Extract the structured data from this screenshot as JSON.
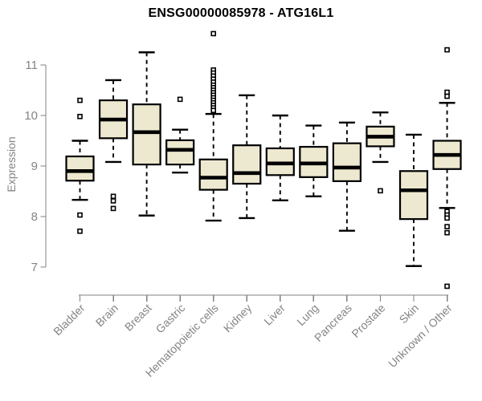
{
  "chart_data": {
    "type": "boxplot",
    "title": "ENSG00000085978 - ATG16L1",
    "ylabel": "Expression",
    "ylim": [
      7,
      11
    ],
    "yticks": [
      7,
      8,
      9,
      10,
      11
    ],
    "grid": false,
    "legend": "none",
    "categories": [
      "Bladder",
      "Brain",
      "Breast",
      "Gastric",
      "Hematopoietic cells",
      "Kidney",
      "Liver",
      "Lung",
      "Pancreas",
      "Prostate",
      "Skin",
      "Unknown / Other"
    ],
    "series": [
      {
        "name": "Bladder",
        "low": 8.33,
        "q1": 8.71,
        "median": 8.9,
        "q3": 9.19,
        "high": 9.5,
        "outliers": [
          10.3,
          9.98,
          8.03,
          7.71
        ]
      },
      {
        "name": "Brain",
        "low": 9.08,
        "q1": 9.55,
        "median": 9.92,
        "q3": 10.3,
        "high": 10.7,
        "outliers": [
          8.4,
          8.31,
          8.16
        ]
      },
      {
        "name": "Breast",
        "low": 8.02,
        "q1": 9.03,
        "median": 9.67,
        "q3": 10.22,
        "high": 11.25,
        "outliers": []
      },
      {
        "name": "Gastric",
        "low": 8.87,
        "q1": 9.03,
        "median": 9.32,
        "q3": 9.51,
        "high": 9.72,
        "outliers": [
          10.32
        ]
      },
      {
        "name": "Hematopoietic cells",
        "low": 7.92,
        "q1": 8.53,
        "median": 8.77,
        "q3": 9.13,
        "high": 10.03,
        "outliers": [
          11.62,
          10.9,
          10.84,
          10.78,
          10.72,
          10.66,
          10.6,
          10.55,
          10.5,
          10.45,
          10.4,
          10.35,
          10.3,
          10.25,
          10.2,
          10.15,
          10.1
        ]
      },
      {
        "name": "Kidney",
        "low": 7.97,
        "q1": 8.65,
        "median": 8.86,
        "q3": 9.41,
        "high": 10.4,
        "outliers": []
      },
      {
        "name": "Liver",
        "low": 8.32,
        "q1": 8.82,
        "median": 9.05,
        "q3": 9.35,
        "high": 10.0,
        "outliers": []
      },
      {
        "name": "Lung",
        "low": 8.4,
        "q1": 8.78,
        "median": 9.05,
        "q3": 9.38,
        "high": 9.8,
        "outliers": []
      },
      {
        "name": "Pancreas",
        "low": 7.72,
        "q1": 8.7,
        "median": 8.97,
        "q3": 9.45,
        "high": 9.86,
        "outliers": []
      },
      {
        "name": "Prostate",
        "low": 9.08,
        "q1": 9.39,
        "median": 9.58,
        "q3": 9.78,
        "high": 10.06,
        "outliers": [
          8.51
        ]
      },
      {
        "name": "Skin",
        "low": 7.02,
        "q1": 7.95,
        "median": 8.52,
        "q3": 8.9,
        "high": 9.62,
        "outliers": []
      },
      {
        "name": "Unknown / Other",
        "low": 8.17,
        "q1": 8.94,
        "median": 9.22,
        "q3": 9.5,
        "high": 10.25,
        "outliers": [
          11.3,
          10.46,
          10.38,
          8.1,
          8.03,
          7.97,
          7.8,
          7.68,
          6.62
        ]
      }
    ],
    "colors": {
      "box_fill": "#EDE8D0",
      "box_border": "#000000",
      "median_line": "#000000",
      "whisker": "#000000",
      "outlier_fill": "#ffffff",
      "outlier_border": "#000000",
      "axis": "#808080",
      "tick_label": "#848484",
      "title": "#000000",
      "background": "#ffffff"
    }
  }
}
